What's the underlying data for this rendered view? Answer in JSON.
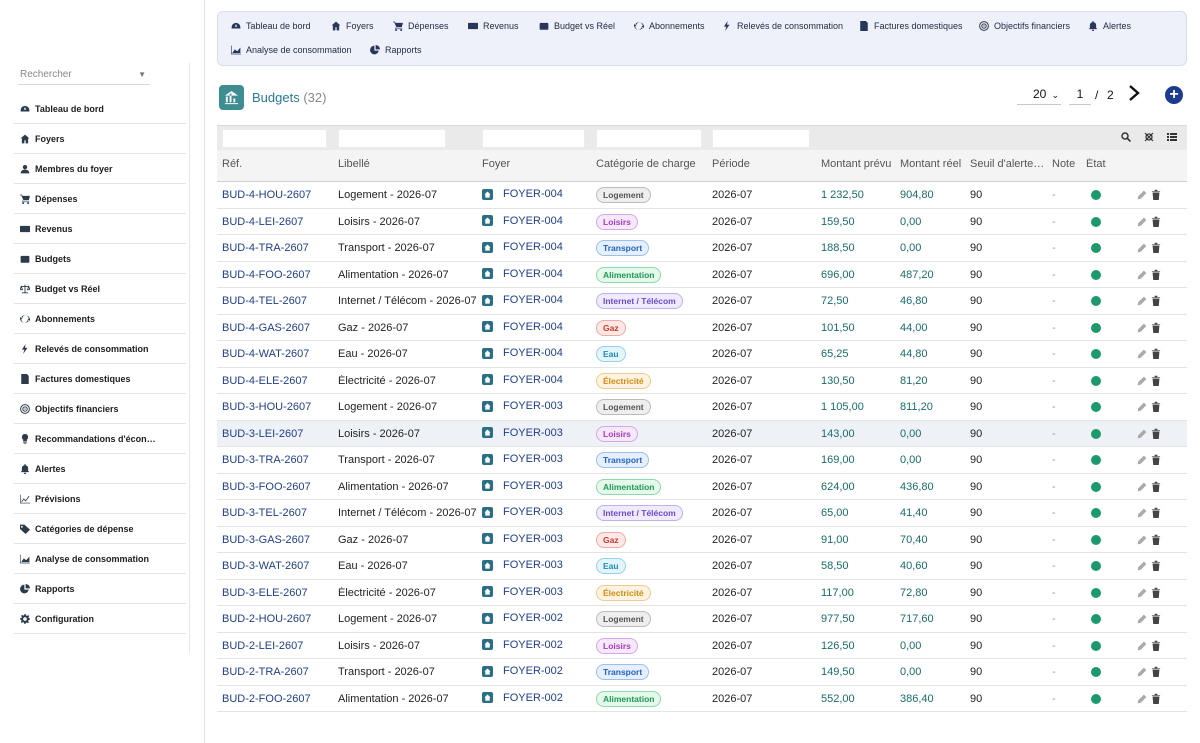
{
  "sidebar": {
    "search_placeholder": "Rechercher",
    "items": [
      {
        "label": "Tableau de bord",
        "icon": "dashboard-icon"
      },
      {
        "label": "Foyers",
        "icon": "home-icon"
      },
      {
        "label": "Membres du foyer",
        "icon": "user-icon"
      },
      {
        "label": "Dépenses",
        "icon": "cart-icon"
      },
      {
        "label": "Revenus",
        "icon": "money-icon"
      },
      {
        "label": "Budgets",
        "icon": "wallet-icon"
      },
      {
        "label": "Budget vs Réel",
        "icon": "scale-icon"
      },
      {
        "label": "Abonnements",
        "icon": "refresh-icon"
      },
      {
        "label": "Relevés de consommation",
        "icon": "bolt-icon"
      },
      {
        "label": "Factures domestiques",
        "icon": "invoice-icon"
      },
      {
        "label": "Objectifs financiers",
        "icon": "target-icon"
      },
      {
        "label": "Recommandations d'écon…",
        "icon": "lightbulb-icon"
      },
      {
        "label": "Alertes",
        "icon": "bell-icon"
      },
      {
        "label": "Prévisions",
        "icon": "line-chart-icon"
      },
      {
        "label": "Catégories de dépense",
        "icon": "tags-icon"
      },
      {
        "label": "Analyse de consommation",
        "icon": "area-chart-icon"
      },
      {
        "label": "Rapports",
        "icon": "pie-chart-icon"
      },
      {
        "label": "Configuration",
        "icon": "gear-icon"
      }
    ]
  },
  "topmenu": {
    "row1": [
      {
        "label": "Tableau de bord",
        "icon": "dashboard-icon"
      },
      {
        "label": "Foyers",
        "icon": "home-icon"
      },
      {
        "label": "Dépenses",
        "icon": "cart-icon"
      },
      {
        "label": "Revenus",
        "icon": "money-icon"
      },
      {
        "label": "Budget vs Réel",
        "icon": "wallet-icon"
      },
      {
        "label": "Abonnements",
        "icon": "refresh-icon"
      },
      {
        "label": "Relevés de consommation",
        "icon": "bolt-icon"
      },
      {
        "label": "Factures domestiques",
        "icon": "invoice-icon"
      },
      {
        "label": "Objectifs financiers",
        "icon": "target-icon"
      },
      {
        "label": "Alertes",
        "icon": "bell-icon"
      }
    ],
    "row2": [
      {
        "label": "Analyse de consommation",
        "icon": "area-chart-icon"
      },
      {
        "label": "Rapports",
        "icon": "pie-chart-icon"
      }
    ]
  },
  "header": {
    "title": "Budgets",
    "count": "(32)",
    "per_page": "20",
    "page_current": "1",
    "page_sep": "/",
    "page_total": "2",
    "add_label": "+"
  },
  "table": {
    "columns": [
      "Réf.",
      "Libellé",
      "Foyer",
      "Catégorie de charge",
      "Période",
      "Montant prévu",
      "Montant réel",
      "Seuil d'alerte…",
      "Note",
      "État"
    ],
    "categories": {
      "Logement": {
        "bg": "#eeeeee",
        "fg": "#555555",
        "border": "#bbbbbb"
      },
      "Loisirs": {
        "bg": "#f6e8fb",
        "fg": "#a03cc0",
        "border": "#d7a6e8"
      },
      "Transport": {
        "bg": "#e6f0fd",
        "fg": "#2360c8",
        "border": "#9cbdf0"
      },
      "Alimentation": {
        "bg": "#e4f8ec",
        "fg": "#1e9a52",
        "border": "#8fd8ad"
      },
      "Internet / Télécom": {
        "bg": "#efeafc",
        "fg": "#6b4ad0",
        "border": "#bfaef0"
      },
      "Gaz": {
        "bg": "#fde8e6",
        "fg": "#c83a2c",
        "border": "#f0aaa2"
      },
      "Eau": {
        "bg": "#e3f5fb",
        "fg": "#1c8cb8",
        "border": "#93d2ea"
      },
      "Électricité": {
        "bg": "#fdf3e0",
        "fg": "#d48a10",
        "border": "#f0cc8a"
      }
    },
    "rows": [
      {
        "ref": "BUD-4-HOU-2607",
        "libelle": "Logement - 2026-07",
        "foyer": "FOYER-004",
        "categorie": "Logement",
        "periode": "2026-07",
        "prevu": "1 232,50",
        "reel": "904,80",
        "seuil": "90",
        "note": "-"
      },
      {
        "ref": "BUD-4-LEI-2607",
        "libelle": "Loisirs - 2026-07",
        "foyer": "FOYER-004",
        "categorie": "Loisirs",
        "periode": "2026-07",
        "prevu": "159,50",
        "reel": "0,00",
        "seuil": "90",
        "note": "-"
      },
      {
        "ref": "BUD-4-TRA-2607",
        "libelle": "Transport - 2026-07",
        "foyer": "FOYER-004",
        "categorie": "Transport",
        "periode": "2026-07",
        "prevu": "188,50",
        "reel": "0,00",
        "seuil": "90",
        "note": "-"
      },
      {
        "ref": "BUD-4-FOO-2607",
        "libelle": "Alimentation - 2026-07",
        "foyer": "FOYER-004",
        "categorie": "Alimentation",
        "periode": "2026-07",
        "prevu": "696,00",
        "reel": "487,20",
        "seuil": "90",
        "note": "-"
      },
      {
        "ref": "BUD-4-TEL-2607",
        "libelle": "Internet / Télécom - 2026-07",
        "foyer": "FOYER-004",
        "categorie": "Internet / Télécom",
        "periode": "2026-07",
        "prevu": "72,50",
        "reel": "46,80",
        "seuil": "90",
        "note": "-"
      },
      {
        "ref": "BUD-4-GAS-2607",
        "libelle": "Gaz - 2026-07",
        "foyer": "FOYER-004",
        "categorie": "Gaz",
        "periode": "2026-07",
        "prevu": "101,50",
        "reel": "44,00",
        "seuil": "90",
        "note": "-"
      },
      {
        "ref": "BUD-4-WAT-2607",
        "libelle": "Eau - 2026-07",
        "foyer": "FOYER-004",
        "categorie": "Eau",
        "periode": "2026-07",
        "prevu": "65,25",
        "reel": "44,80",
        "seuil": "90",
        "note": "-"
      },
      {
        "ref": "BUD-4-ELE-2607",
        "libelle": "Électricité - 2026-07",
        "foyer": "FOYER-004",
        "categorie": "Électricité",
        "periode": "2026-07",
        "prevu": "130,50",
        "reel": "81,20",
        "seuil": "90",
        "note": "-"
      },
      {
        "ref": "BUD-3-HOU-2607",
        "libelle": "Logement - 2026-07",
        "foyer": "FOYER-003",
        "categorie": "Logement",
        "periode": "2026-07",
        "prevu": "1 105,00",
        "reel": "811,20",
        "seuil": "90",
        "note": "-"
      },
      {
        "ref": "BUD-3-LEI-2607",
        "libelle": "Loisirs - 2026-07",
        "foyer": "FOYER-003",
        "categorie": "Loisirs",
        "periode": "2026-07",
        "prevu": "143,00",
        "reel": "0,00",
        "seuil": "90",
        "note": "-",
        "highlight": true
      },
      {
        "ref": "BUD-3-TRA-2607",
        "libelle": "Transport - 2026-07",
        "foyer": "FOYER-003",
        "categorie": "Transport",
        "periode": "2026-07",
        "prevu": "169,00",
        "reel": "0,00",
        "seuil": "90",
        "note": "-"
      },
      {
        "ref": "BUD-3-FOO-2607",
        "libelle": "Alimentation - 2026-07",
        "foyer": "FOYER-003",
        "categorie": "Alimentation",
        "periode": "2026-07",
        "prevu": "624,00",
        "reel": "436,80",
        "seuil": "90",
        "note": "-"
      },
      {
        "ref": "BUD-3-TEL-2607",
        "libelle": "Internet / Télécom - 2026-07",
        "foyer": "FOYER-003",
        "categorie": "Internet / Télécom",
        "periode": "2026-07",
        "prevu": "65,00",
        "reel": "41,40",
        "seuil": "90",
        "note": "-"
      },
      {
        "ref": "BUD-3-GAS-2607",
        "libelle": "Gaz - 2026-07",
        "foyer": "FOYER-003",
        "categorie": "Gaz",
        "periode": "2026-07",
        "prevu": "91,00",
        "reel": "70,40",
        "seuil": "90",
        "note": "-"
      },
      {
        "ref": "BUD-3-WAT-2607",
        "libelle": "Eau - 2026-07",
        "foyer": "FOYER-003",
        "categorie": "Eau",
        "periode": "2026-07",
        "prevu": "58,50",
        "reel": "40,60",
        "seuil": "90",
        "note": "-"
      },
      {
        "ref": "BUD-3-ELE-2607",
        "libelle": "Électricité - 2026-07",
        "foyer": "FOYER-003",
        "categorie": "Électricité",
        "periode": "2026-07",
        "prevu": "117,00",
        "reel": "72,80",
        "seuil": "90",
        "note": "-"
      },
      {
        "ref": "BUD-2-HOU-2607",
        "libelle": "Logement - 2026-07",
        "foyer": "FOYER-002",
        "categorie": "Logement",
        "periode": "2026-07",
        "prevu": "977,50",
        "reel": "717,60",
        "seuil": "90",
        "note": "-"
      },
      {
        "ref": "BUD-2-LEI-2607",
        "libelle": "Loisirs - 2026-07",
        "foyer": "FOYER-002",
        "categorie": "Loisirs",
        "periode": "2026-07",
        "prevu": "126,50",
        "reel": "0,00",
        "seuil": "90",
        "note": "-"
      },
      {
        "ref": "BUD-2-TRA-2607",
        "libelle": "Transport - 2026-07",
        "foyer": "FOYER-002",
        "categorie": "Transport",
        "periode": "2026-07",
        "prevu": "149,50",
        "reel": "0,00",
        "seuil": "90",
        "note": "-"
      },
      {
        "ref": "BUD-2-FOO-2607",
        "libelle": "Alimentation - 2026-07",
        "foyer": "FOYER-002",
        "categorie": "Alimentation",
        "periode": "2026-07",
        "prevu": "552,00",
        "reel": "386,40",
        "seuil": "90",
        "note": "-"
      }
    ]
  },
  "colors": {
    "accent": "#27799a",
    "status_ok": "#1d9a6c",
    "add_button": "#1d3b8f",
    "topmenu_bg": "#eef0fa"
  }
}
